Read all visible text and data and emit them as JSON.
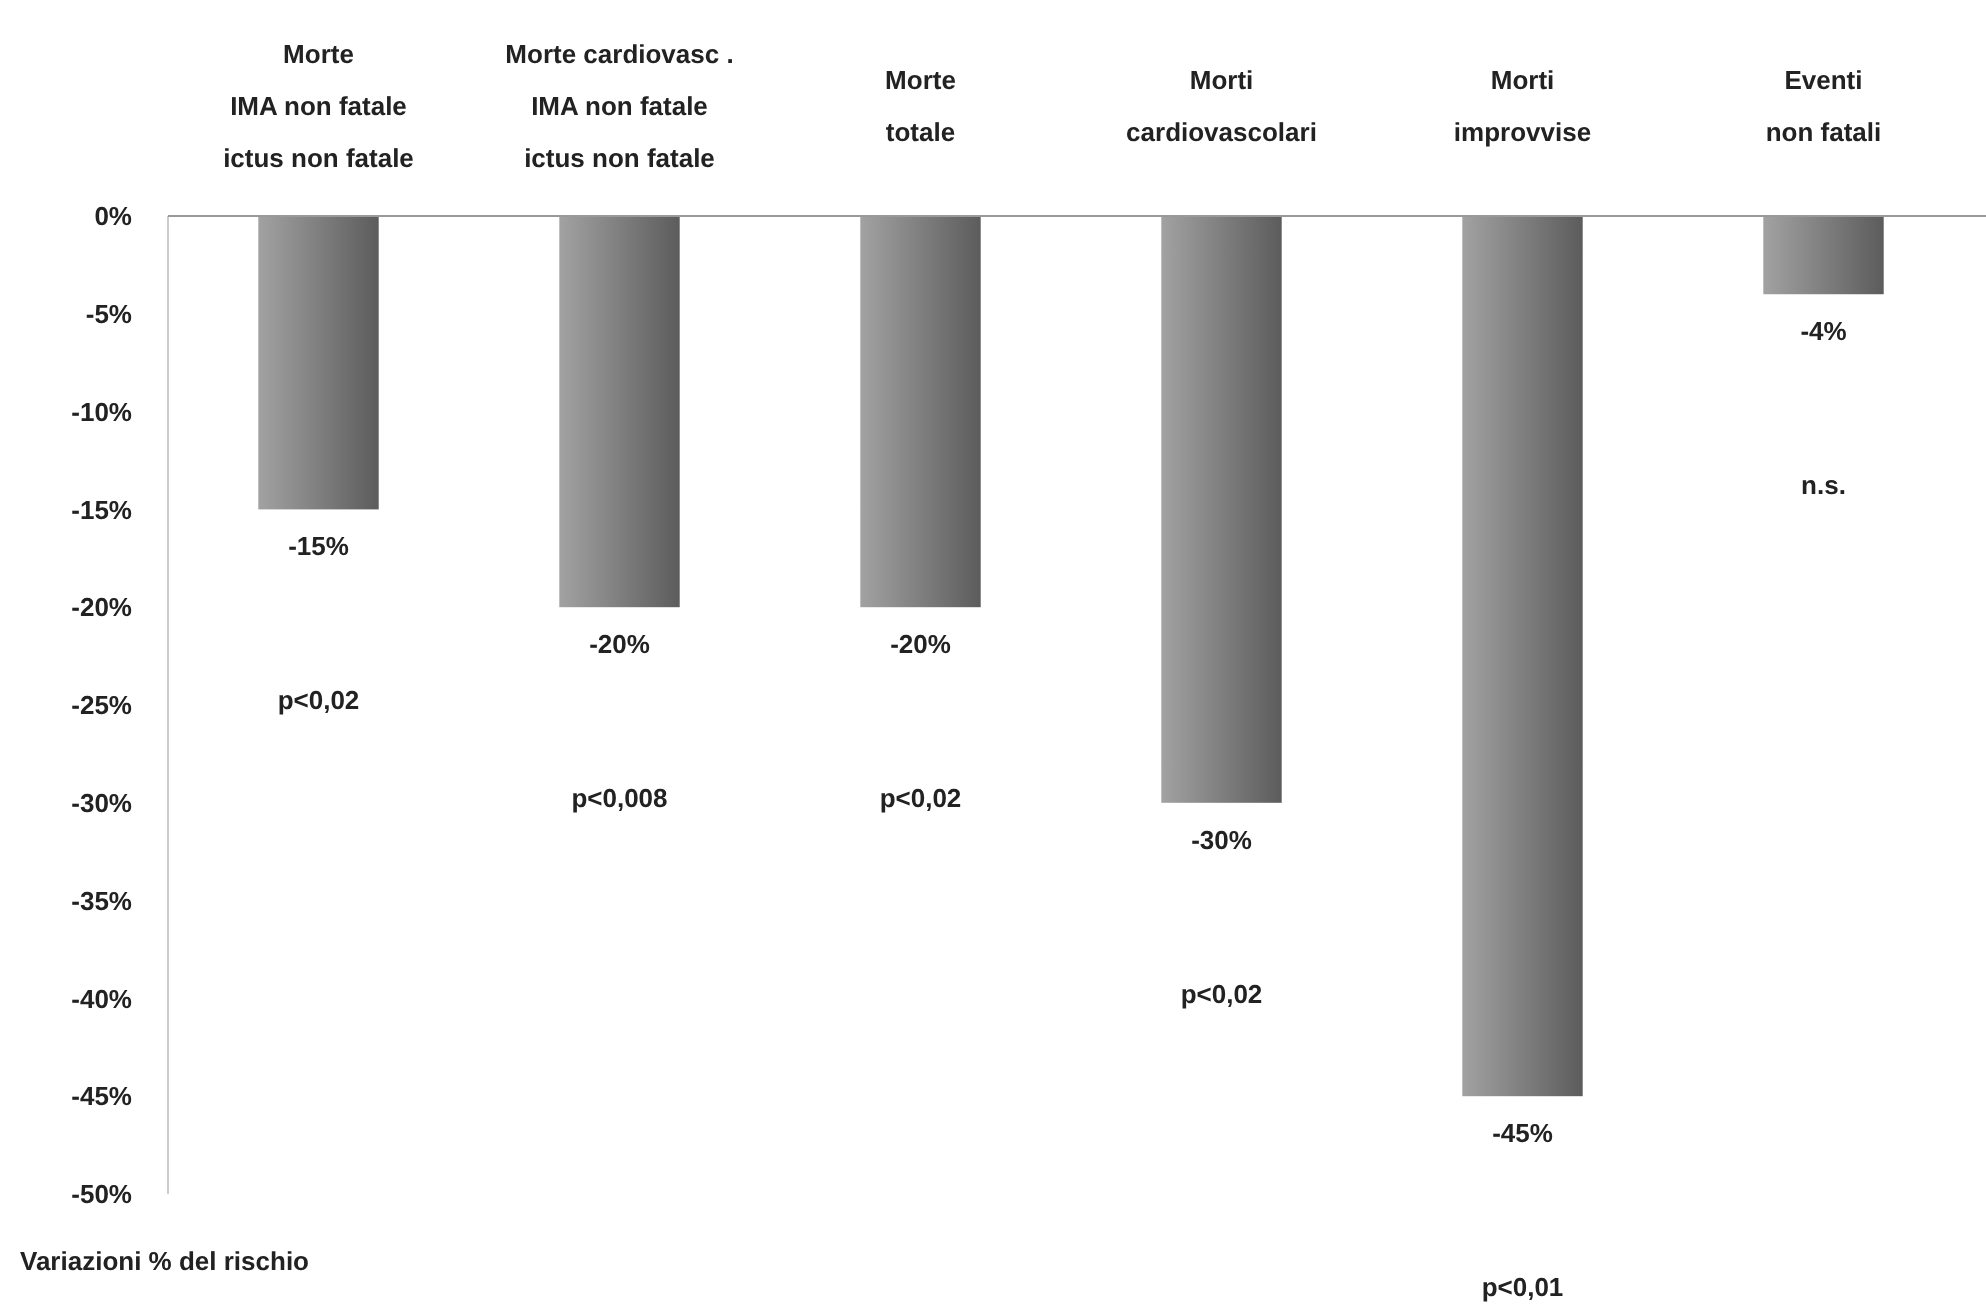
{
  "chart_data": {
    "type": "bar",
    "ylabel": "Variazioni % del rischio",
    "categories": [
      "Morte\nIMA non fatale\nictus non fatale",
      "Morte cardiovasc .\nIMA non fatale\nictus non fatale",
      "Morte\ntotale",
      "Morti\ncardiovascolari",
      "Morti\nimprovvise",
      "Eventi\nnon fatali"
    ],
    "values": [
      -15,
      -20,
      -20,
      -30,
      -45,
      -4
    ],
    "value_labels": [
      "-15%",
      "-20%",
      "-20%",
      "-30%",
      "-45%",
      "-4%"
    ],
    "color": "#7a7a7a",
    "ylim": [
      -50,
      0
    ],
    "yticks": [
      {
        "value": 0,
        "label": "0%"
      },
      {
        "value": -5,
        "label": "-5%"
      },
      {
        "value": -10,
        "label": "-10%"
      },
      {
        "value": -15,
        "label": "-15%"
      },
      {
        "value": -20,
        "label": "-20%"
      },
      {
        "value": -25,
        "label": "-25%"
      },
      {
        "value": -30,
        "label": "-30%"
      },
      {
        "value": -35,
        "label": "-35%"
      },
      {
        "value": -40,
        "label": "-40%"
      },
      {
        "value": -45,
        "label": "-45%"
      },
      {
        "value": -50,
        "label": "-50%"
      }
    ],
    "annotations": [
      "p<0,02",
      "p<0,008",
      "p<0,02",
      "p<0,02",
      "p<0,01",
      "n.s."
    ],
    "grid": false
  }
}
